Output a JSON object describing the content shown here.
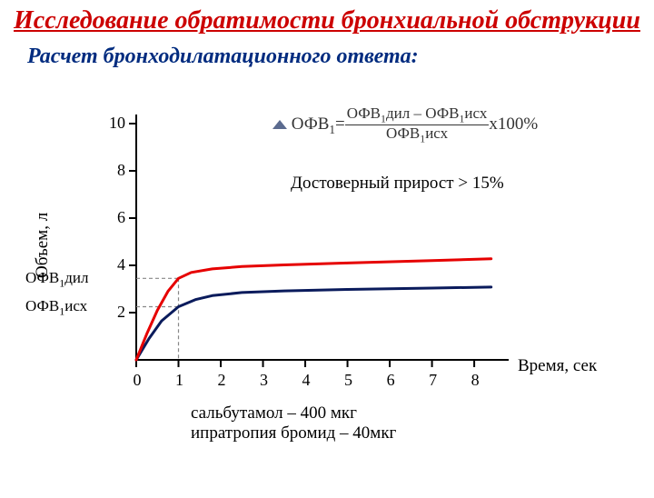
{
  "title": "Исследование обратимости бронхиальной обструкции",
  "subtitle": "Расчет бронходилатационного ответа:",
  "chart": {
    "type": "line",
    "x_axis": {
      "label": "Время, сек",
      "min": 0,
      "max": 8.6,
      "ticks": [
        0,
        1,
        2,
        3,
        4,
        5,
        6,
        7,
        8
      ]
    },
    "y_axis": {
      "label": "Объем, л",
      "min": 0,
      "max": 10,
      "ticks": [
        2,
        4,
        6,
        8,
        10
      ]
    },
    "series": [
      {
        "name": "ОФВ1исх",
        "color": "#0a1b5c",
        "line_width": 3,
        "points": [
          [
            0,
            0
          ],
          [
            0.3,
            0.9
          ],
          [
            0.6,
            1.65
          ],
          [
            1.0,
            2.25
          ],
          [
            1.4,
            2.55
          ],
          [
            1.8,
            2.72
          ],
          [
            2.5,
            2.85
          ],
          [
            3.5,
            2.92
          ],
          [
            5.0,
            2.98
          ],
          [
            7.0,
            3.04
          ],
          [
            8.4,
            3.08
          ]
        ]
      },
      {
        "name": "ОФВ1дил",
        "color": "#e60000",
        "line_width": 3,
        "points": [
          [
            0,
            0
          ],
          [
            0.25,
            1.1
          ],
          [
            0.5,
            2.1
          ],
          [
            0.75,
            2.9
          ],
          [
            1.0,
            3.45
          ],
          [
            1.3,
            3.7
          ],
          [
            1.8,
            3.85
          ],
          [
            2.5,
            3.95
          ],
          [
            3.5,
            4.02
          ],
          [
            5.0,
            4.1
          ],
          [
            7.0,
            4.2
          ],
          [
            8.4,
            4.28
          ]
        ]
      }
    ],
    "markers": {
      "x_ref": 1,
      "isx_y": 2.25,
      "dil_y": 3.45,
      "color": "#888888",
      "dash": "4 3"
    },
    "side_labels": {
      "dil": "ОФВ1дил",
      "isx": "ОФВ1исх"
    },
    "axis_color": "#000000",
    "tick_len": 8,
    "background": "#ffffff"
  },
  "formula": {
    "marker_color": "#5b6b8f",
    "lhs": "ОФВ1=",
    "numerator": "ОФВ1дил – ОФВ1исх",
    "denominator": "ОФВ1исх",
    "suffix": "x100%"
  },
  "note": "Достоверный прирост > 15%",
  "footer": {
    "line1": "сальбутамол – 400 мкг",
    "line2": "ипратропия бромид – 40мкг"
  }
}
